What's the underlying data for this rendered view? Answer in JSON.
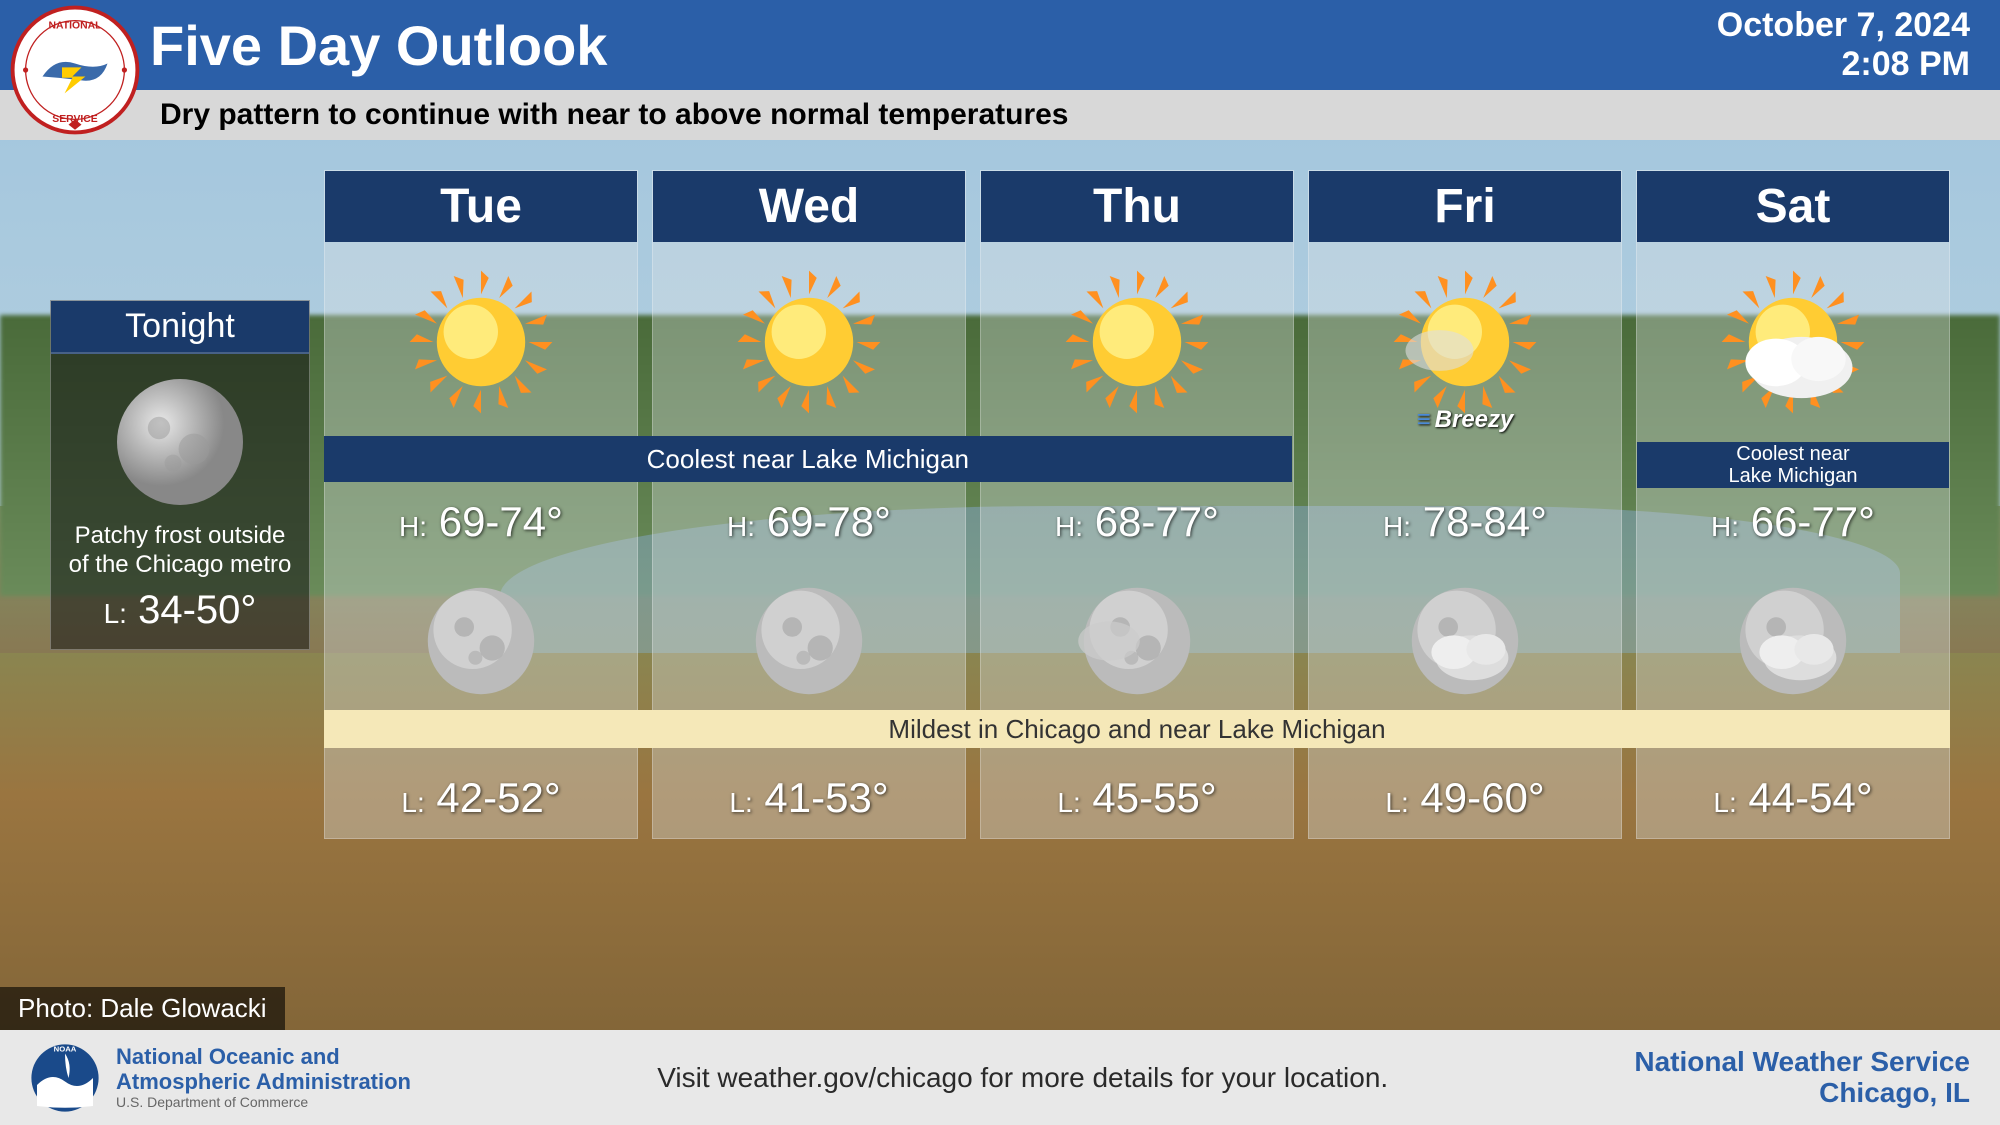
{
  "header": {
    "title": "Five Day Outlook",
    "date": "October 7, 2024",
    "time": "2:08 PM"
  },
  "subtitle": "Dry pattern to continue with near to above normal temperatures",
  "tonight": {
    "label": "Tonight",
    "icon": "moon",
    "note": "Patchy frost outside of the Chicago metro",
    "low_label": "L:",
    "low": "34-50°"
  },
  "spanning_cool_note": "Coolest near Lake Michigan",
  "spanning_mild_note": "Mildest in Chicago and near Lake Michigan",
  "days": [
    {
      "name": "Tue",
      "day_icon": "sun",
      "breezy": false,
      "col_note": "",
      "high_label": "H:",
      "high": "69-74°",
      "night_icon": "moon",
      "low_label": "L:",
      "low": "42-52°"
    },
    {
      "name": "Wed",
      "day_icon": "sun",
      "breezy": false,
      "col_note": "",
      "high_label": "H:",
      "high": "69-78°",
      "night_icon": "moon",
      "low_label": "L:",
      "low": "41-53°"
    },
    {
      "name": "Thu",
      "day_icon": "sun",
      "breezy": false,
      "col_note": "",
      "high_label": "H:",
      "high": "68-77°",
      "night_icon": "moon-haze",
      "low_label": "L:",
      "low": "45-55°"
    },
    {
      "name": "Fri",
      "day_icon": "sun-haze",
      "breezy": true,
      "breezy_text": "Breezy",
      "col_note": "",
      "high_label": "H:",
      "high": "78-84°",
      "night_icon": "moon-cloud",
      "low_label": "L:",
      "low": "49-60°"
    },
    {
      "name": "Sat",
      "day_icon": "sun-cloud",
      "breezy": false,
      "col_note": "Coolest near Lake Michigan",
      "high_label": "H:",
      "high": "66-77°",
      "night_icon": "moon-cloud",
      "low_label": "L:",
      "low": "44-54°"
    }
  ],
  "photo_credit": "Photo: Dale Glowacki",
  "footer": {
    "noaa_line1": "National Oceanic and",
    "noaa_line2": "Atmospheric Administration",
    "noaa_line3": "U.S. Department of Commerce",
    "center": "Visit weather.gov/chicago for more details for your location.",
    "right_line1": "National Weather Service",
    "right_line2": "Chicago, IL"
  },
  "colors": {
    "header_blue": "#2b5fa8",
    "panel_blue": "#1a3a6a",
    "mild_band": "#f5e8b8",
    "sub_bar": "#d8d8d8",
    "footer_bg": "#e8e8e8"
  }
}
